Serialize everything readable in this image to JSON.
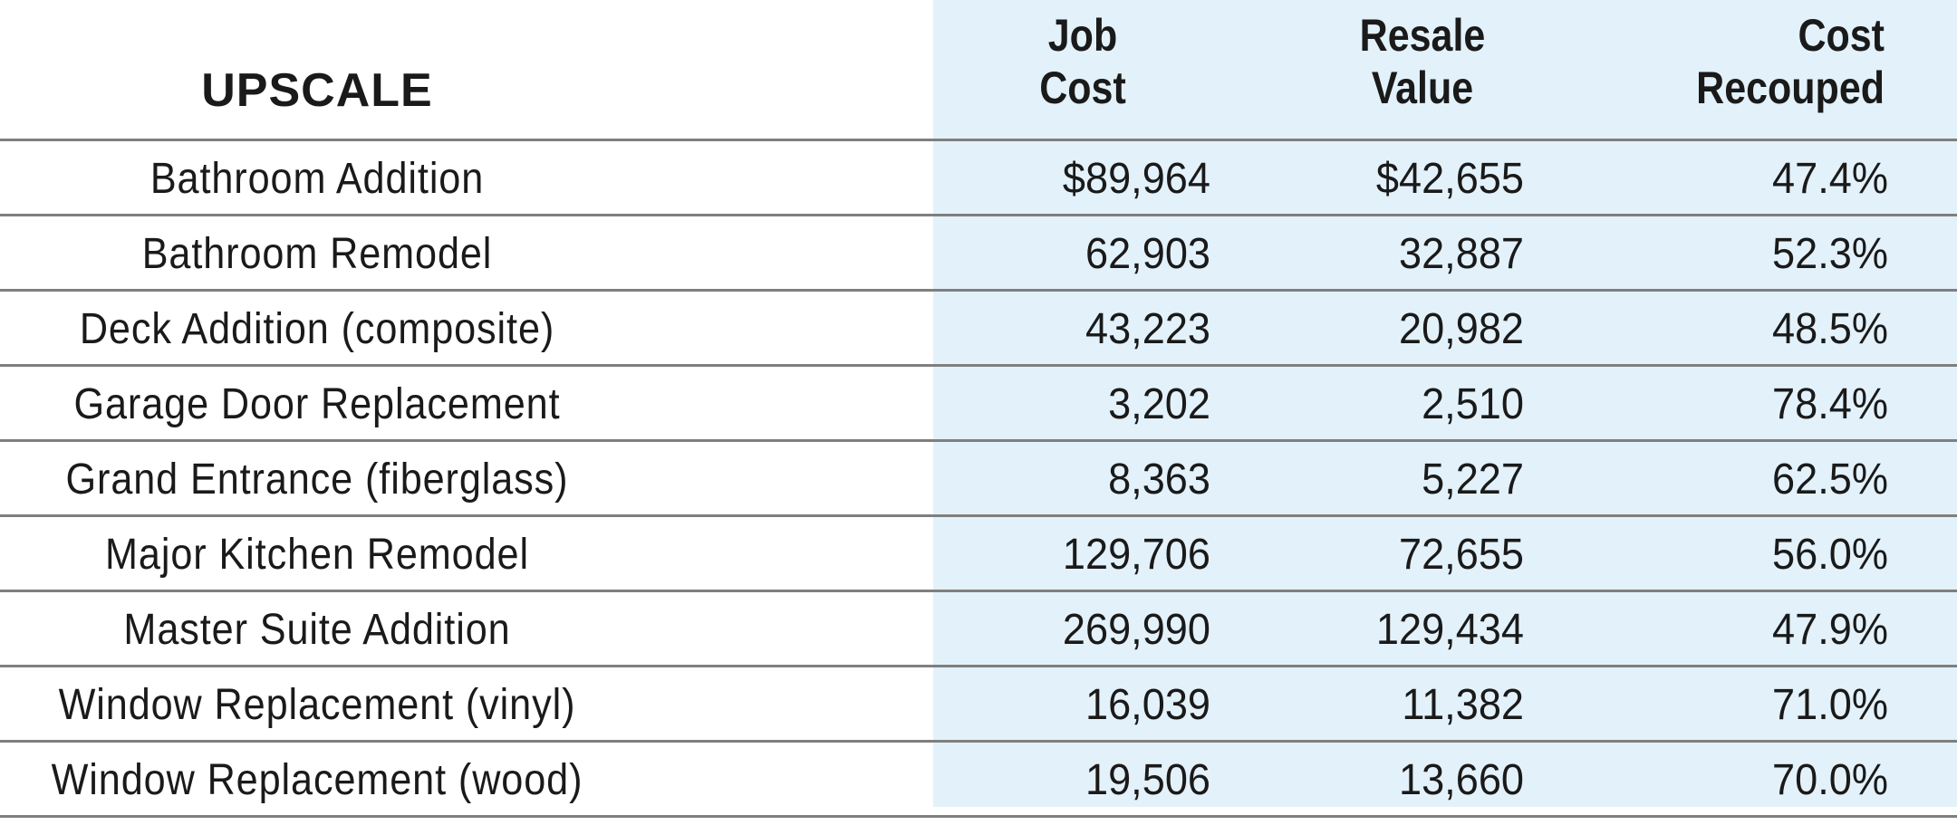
{
  "chart_data": {
    "type": "table",
    "title": "UPSCALE",
    "columns": [
      {
        "line1": "Job",
        "line2": "Cost"
      },
      {
        "line1": "Resale",
        "line2": "Value"
      },
      {
        "line1": "Cost",
        "line2": "Recouped"
      }
    ],
    "rows": [
      {
        "project": "Bathroom Addition",
        "job_cost": "$89,964",
        "resale_value": "$42,655",
        "cost_recouped": "47.4%"
      },
      {
        "project": "Bathroom Remodel",
        "job_cost": "62,903",
        "resale_value": "32,887",
        "cost_recouped": "52.3%"
      },
      {
        "project": "Deck Addition (composite)",
        "job_cost": "43,223",
        "resale_value": "20,982",
        "cost_recouped": "48.5%"
      },
      {
        "project": "Garage Door Replacement",
        "job_cost": "3,202",
        "resale_value": "2,510",
        "cost_recouped": "78.4%"
      },
      {
        "project": "Grand Entrance (fiberglass)",
        "job_cost": "8,363",
        "resale_value": "5,227",
        "cost_recouped": "62.5%"
      },
      {
        "project": "Major Kitchen Remodel",
        "job_cost": "129,706",
        "resale_value": "72,655",
        "cost_recouped": "56.0%"
      },
      {
        "project": "Master Suite Addition",
        "job_cost": "269,990",
        "resale_value": "129,434",
        "cost_recouped": "47.9%"
      },
      {
        "project": "Window Replacement (vinyl)",
        "job_cost": "16,039",
        "resale_value": "11,382",
        "cost_recouped": "71.0%"
      },
      {
        "project": "Window Replacement (wood)",
        "job_cost": "19,506",
        "resale_value": "13,660",
        "cost_recouped": "70.0%"
      }
    ]
  },
  "colors": {
    "shaded_columns_background": "#e3f1fa",
    "rule_color": "#7f7f7f",
    "text_color": "#1a1a1a"
  }
}
